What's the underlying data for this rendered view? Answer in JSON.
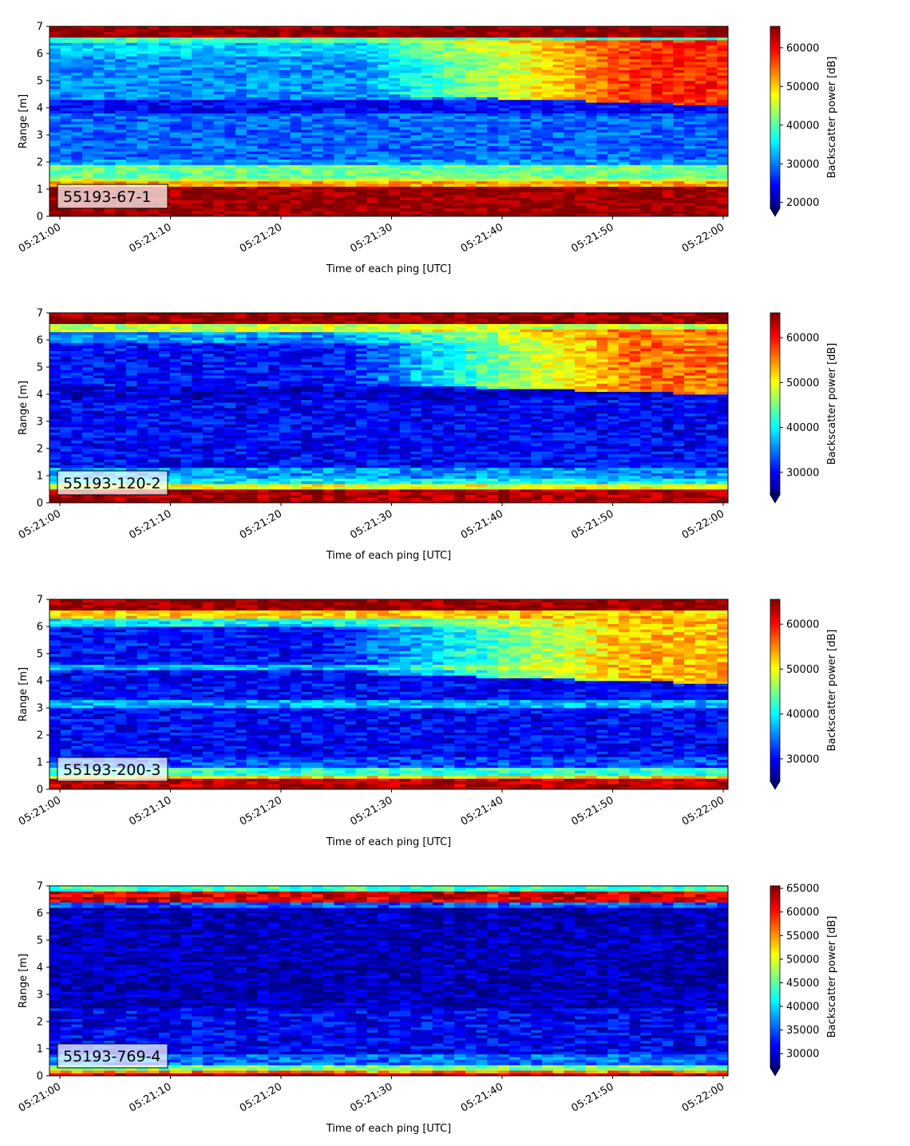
{
  "chart_data": [
    {
      "type": "heatmap",
      "label": "55193-67-1",
      "xlabel": "Time of each ping [UTC]",
      "ylabel": "Range [m]",
      "xticks": [
        "05:21:00",
        "05:21:10",
        "05:21:20",
        "05:21:30",
        "05:21:40",
        "05:21:50",
        "05:22:00"
      ],
      "ylim": [
        0,
        7
      ],
      "yticks": [
        "0",
        "1",
        "2",
        "3",
        "4",
        "5",
        "6",
        "7"
      ],
      "colorbar": {
        "label": "Backscatter power [dB]",
        "min": 18500,
        "max": 65535,
        "ticks": [
          20000,
          30000,
          40000,
          50000,
          60000
        ]
      },
      "profile": [
        [
          0,
          0.2,
          65000
        ],
        [
          0.2,
          1.05,
          64500
        ],
        [
          1.05,
          1.15,
          58000
        ],
        [
          1.15,
          1.3,
          52000
        ],
        [
          1.3,
          1.45,
          47000
        ],
        [
          1.45,
          1.95,
          41000
        ],
        [
          1.95,
          2.1,
          31000
        ],
        [
          2.1,
          3.8,
          29000
        ],
        [
          3.8,
          4.3,
          24500
        ],
        [
          4.3,
          5.9,
          31000
        ],
        [
          5.9,
          6.4,
          34000
        ],
        [
          6.4,
          6.6,
          39000
        ],
        [
          6.6,
          7.0,
          65000
        ]
      ],
      "trend": {
        "start": 0.45,
        "ylo": 4.1,
        "yhi": 6.5,
        "value": 58000
      }
    },
    {
      "type": "heatmap",
      "label": "55193-120-2",
      "xlabel": "Time of each ping [UTC]",
      "ylabel": "Range [m]",
      "xticks": [
        "05:21:00",
        "05:21:10",
        "05:21:20",
        "05:21:30",
        "05:21:40",
        "05:21:50",
        "05:22:00"
      ],
      "ylim": [
        0,
        7
      ],
      "yticks": [
        "0",
        "1",
        "2",
        "3",
        "4",
        "5",
        "6",
        "7"
      ],
      "colorbar": {
        "label": "Backscatter power [dB]",
        "min": 25000,
        "max": 65535,
        "ticks": [
          30000,
          40000,
          50000,
          60000
        ]
      },
      "profile": [
        [
          0,
          0.15,
          65000
        ],
        [
          0.15,
          0.55,
          64000
        ],
        [
          0.55,
          0.7,
          50000
        ],
        [
          0.7,
          0.95,
          40000
        ],
        [
          0.95,
          1.3,
          36000
        ],
        [
          1.3,
          3.8,
          30000
        ],
        [
          3.8,
          4.3,
          28500
        ],
        [
          4.3,
          5.9,
          30500
        ],
        [
          5.9,
          6.3,
          36000
        ],
        [
          6.3,
          6.6,
          48000
        ],
        [
          6.6,
          7.0,
          65000
        ]
      ],
      "trend": {
        "start": 0.42,
        "ylo": 4.0,
        "yhi": 6.4,
        "value": 56000
      }
    },
    {
      "type": "heatmap",
      "label": "55193-200-3",
      "xlabel": "Time of each ping [UTC]",
      "ylabel": "Range [m]",
      "xticks": [
        "05:21:00",
        "05:21:10",
        "05:21:20",
        "05:21:30",
        "05:21:40",
        "05:21:50",
        "05:22:00"
      ],
      "ylim": [
        0,
        7
      ],
      "yticks": [
        "0",
        "1",
        "2",
        "3",
        "4",
        "5",
        "6",
        "7"
      ],
      "colorbar": {
        "label": "Backscatter power [dB]",
        "min": 25000,
        "max": 65535,
        "ticks": [
          30000,
          40000,
          50000,
          60000
        ]
      },
      "profile": [
        [
          0,
          0.1,
          65000
        ],
        [
          0.1,
          0.4,
          63000
        ],
        [
          0.4,
          0.55,
          52000
        ],
        [
          0.55,
          0.8,
          42000
        ],
        [
          0.8,
          1.2,
          33000
        ],
        [
          1.2,
          3.0,
          30000
        ],
        [
          3.0,
          3.3,
          37000
        ],
        [
          3.3,
          4.4,
          30000
        ],
        [
          4.4,
          4.6,
          37000
        ],
        [
          4.6,
          6.0,
          30500
        ],
        [
          6.0,
          6.3,
          40000
        ],
        [
          6.3,
          6.6,
          52000
        ],
        [
          6.6,
          7.0,
          65000
        ]
      ],
      "trend": {
        "start": 0.4,
        "ylo": 3.9,
        "yhi": 6.4,
        "value": 53000
      }
    },
    {
      "type": "heatmap",
      "label": "55193-769-4",
      "xlabel": "Time of each ping [UTC]",
      "ylabel": "Range [m]",
      "xticks": [
        "05:21:00",
        "05:21:10",
        "05:21:20",
        "05:21:30",
        "05:21:40",
        "05:21:50",
        "05:22:00"
      ],
      "ylim": [
        0,
        7
      ],
      "yticks": [
        "0",
        "1",
        "2",
        "3",
        "4",
        "5",
        "6",
        "7"
      ],
      "colorbar": {
        "label": "Backscatter power [dB]",
        "min": 27000,
        "max": 65535,
        "ticks": [
          30000,
          35000,
          40000,
          45000,
          50000,
          55000,
          60000,
          65000
        ]
      },
      "profile": [
        [
          0,
          0.15,
          63000
        ],
        [
          0.15,
          0.25,
          56000
        ],
        [
          0.25,
          0.4,
          46000
        ],
        [
          0.4,
          0.8,
          36000
        ],
        [
          0.8,
          2.5,
          31500
        ],
        [
          2.5,
          6.2,
          29000
        ],
        [
          6.2,
          6.4,
          35000
        ],
        [
          6.4,
          6.75,
          62000
        ],
        [
          6.75,
          7.0,
          44000
        ]
      ],
      "trend": null
    }
  ]
}
